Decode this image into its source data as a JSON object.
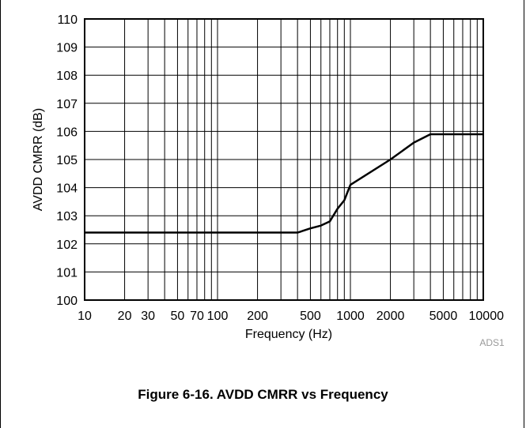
{
  "chart_data": {
    "type": "line",
    "title": "",
    "xlabel": "Frequency (Hz)",
    "ylabel": "AVDD CMRR (dB)",
    "x_scale": "log",
    "xlim": [
      10,
      10000
    ],
    "ylim": [
      100,
      110
    ],
    "grid": true,
    "x_ticks": [
      10,
      20,
      30,
      50,
      70,
      100,
      200,
      500,
      1000,
      2000,
      5000,
      10000
    ],
    "x_tick_labels": [
      "10",
      "20",
      "30",
      "50",
      "70",
      "100",
      "200",
      "500",
      "1000",
      "2000",
      "5000",
      "10000"
    ],
    "y_ticks": [
      100,
      101,
      102,
      103,
      104,
      105,
      106,
      107,
      108,
      109,
      110
    ],
    "y_tick_labels": [
      "100",
      "101",
      "102",
      "103",
      "104",
      "105",
      "106",
      "107",
      "108",
      "109",
      "110"
    ],
    "series": [
      {
        "x": [
          10,
          100,
          300,
          400,
          500,
          600,
          700,
          800,
          900,
          1000,
          2000,
          3000,
          4000,
          10000
        ],
        "y": [
          102.4,
          102.4,
          102.4,
          102.4,
          102.55,
          102.65,
          102.8,
          103.25,
          103.55,
          104.1,
          105.0,
          105.6,
          105.9,
          105.9
        ],
        "color": "#000000"
      }
    ],
    "source_tag": "ADS1"
  },
  "caption": "Figure 6-16. AVDD CMRR vs Frequency"
}
